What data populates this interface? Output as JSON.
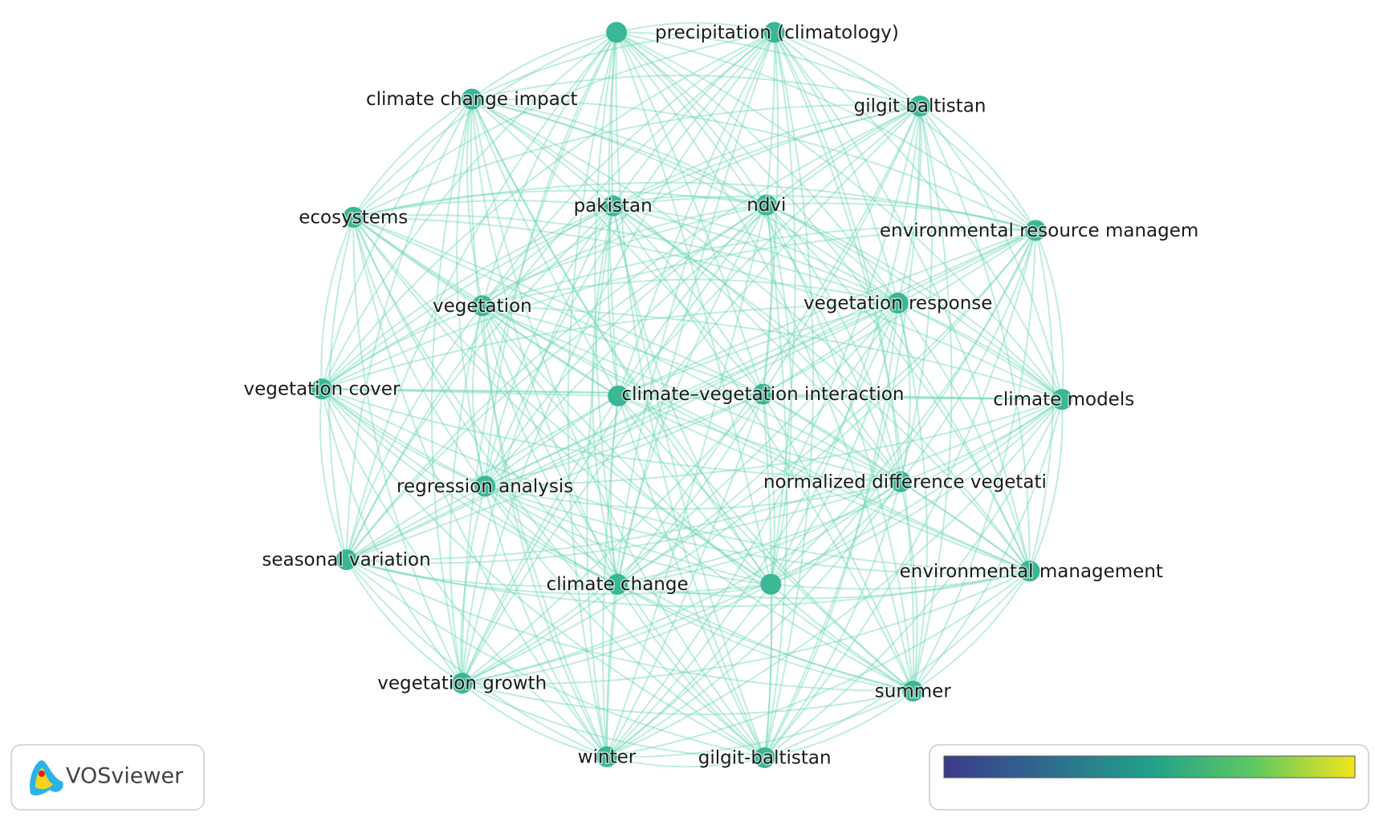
{
  "nodes": [
    {
      "label": "precipitation (climatology)"
    },
    {
      "label": "climate change impact"
    },
    {
      "label": "gilgit baltistan"
    },
    {
      "label": "ecosystems"
    },
    {
      "label": "pakistan"
    },
    {
      "label": "ndvi"
    },
    {
      "label": "environmental resource managem"
    },
    {
      "label": "vegetation"
    },
    {
      "label": "vegetation response"
    },
    {
      "label": "vegetation cover"
    },
    {
      "label": "climate–vegetation interaction"
    },
    {
      "label": "climate models"
    },
    {
      "label": "regression analysis"
    },
    {
      "label": "normalized difference vegetati"
    },
    {
      "label": "seasonal variation"
    },
    {
      "label": "climate change"
    },
    {
      "label": "environmental management"
    },
    {
      "label": "vegetation growth"
    },
    {
      "label": "summer"
    },
    {
      "label": "winter"
    },
    {
      "label": "gilgit-baltistan"
    }
  ],
  "logo": {
    "text": "VOSviewer"
  }
}
